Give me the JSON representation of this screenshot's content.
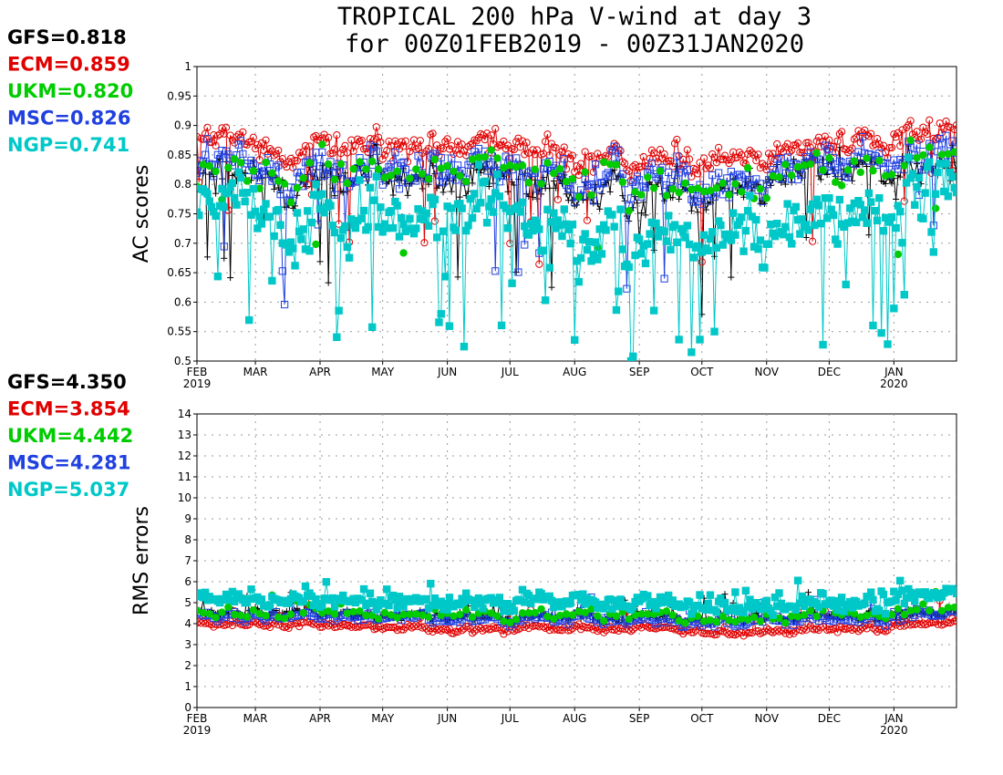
{
  "title": {
    "line1": "TROPICAL 200 hPa V-wind at day 3",
    "line2": "for 00Z01FEB2019 - 00Z31JAN2020"
  },
  "colors": {
    "GFS": "#000000",
    "ECM": "#e00000",
    "UKM": "#00cc00",
    "MSC": "#2040e0",
    "NGP": "#00c8c8"
  },
  "months": [
    "FEB",
    "MAR",
    "APR",
    "MAY",
    "JUN",
    "JUL",
    "AUG",
    "SEP",
    "OCT",
    "NOV",
    "DEC",
    "JAN"
  ],
  "month_years": {
    "FEB": "2019",
    "JAN": "2020"
  },
  "chart_data": [
    {
      "type": "line",
      "ylabel": "AC scores",
      "ylim": [
        0.5,
        1
      ],
      "yticks": [
        "0.5",
        "0.55",
        "0.6",
        "0.65",
        "0.7",
        "0.75",
        "0.8",
        "0.85",
        "0.9",
        "0.95",
        "1"
      ],
      "grid": true,
      "x": "daily, 00Z01FEB2019 to 00Z31JAN2020",
      "stats": [
        {
          "name": "GFS",
          "text": "GFS=0.818"
        },
        {
          "name": "ECM",
          "text": "ECM=0.859"
        },
        {
          "name": "UKM",
          "text": "UKM=0.820"
        },
        {
          "name": "MSC",
          "text": "MSC=0.826"
        },
        {
          "name": "NGP",
          "text": "NGP=0.741"
        }
      ],
      "series": [
        {
          "name": "GFS",
          "marker": "plus",
          "mean": 0.818,
          "monthly": [
            0.81,
            0.8,
            0.82,
            0.81,
            0.8,
            0.8,
            0.78,
            0.79,
            0.8,
            0.82,
            0.83,
            0.83
          ]
        },
        {
          "name": "ECM",
          "marker": "open-circle",
          "mean": 0.859,
          "monthly": [
            0.88,
            0.85,
            0.87,
            0.86,
            0.86,
            0.86,
            0.84,
            0.84,
            0.85,
            0.86,
            0.87,
            0.89
          ]
        },
        {
          "name": "UKM",
          "marker": "filled-circle",
          "mean": 0.82,
          "monthly": [
            0.83,
            0.81,
            0.83,
            0.82,
            0.82,
            0.82,
            0.8,
            0.8,
            0.81,
            0.82,
            0.83,
            0.85
          ]
        },
        {
          "name": "MSC",
          "marker": "open-square",
          "mean": 0.826,
          "monthly": [
            0.84,
            0.81,
            0.83,
            0.82,
            0.82,
            0.82,
            0.8,
            0.81,
            0.81,
            0.83,
            0.84,
            0.85
          ]
        },
        {
          "name": "NGP",
          "marker": "filled-square",
          "mean": 0.741,
          "monthly": [
            0.77,
            0.73,
            0.76,
            0.74,
            0.74,
            0.74,
            0.7,
            0.71,
            0.73,
            0.74,
            0.74,
            0.79
          ]
        }
      ]
    },
    {
      "type": "line",
      "ylabel": "RMS errors",
      "ylim": [
        0,
        14
      ],
      "yticks": [
        "0",
        "1",
        "2",
        "3",
        "4",
        "5",
        "6",
        "7",
        "8",
        "9",
        "10",
        "11",
        "12",
        "13",
        "14"
      ],
      "grid": true,
      "x": "daily, 00Z01FEB2019 to 00Z31JAN2020",
      "stats": [
        {
          "name": "GFS",
          "text": "GFS=4.350"
        },
        {
          "name": "ECM",
          "text": "ECM=3.854"
        },
        {
          "name": "UKM",
          "text": "UKM=4.442"
        },
        {
          "name": "MSC",
          "text": "MSC=4.281"
        },
        {
          "name": "NGP",
          "text": "NGP=5.037"
        }
      ],
      "series": [
        {
          "name": "GFS",
          "marker": "plus",
          "mean": 4.35,
          "monthly": [
            4.5,
            4.6,
            4.4,
            4.4,
            4.3,
            4.3,
            4.3,
            4.4,
            4.2,
            4.3,
            4.3,
            4.4
          ]
        },
        {
          "name": "ECM",
          "marker": "open-circle",
          "mean": 3.854,
          "monthly": [
            4.0,
            4.0,
            3.9,
            3.8,
            3.7,
            3.8,
            3.8,
            3.9,
            3.6,
            3.7,
            3.7,
            4.0
          ]
        },
        {
          "name": "UKM",
          "marker": "filled-circle",
          "mean": 4.442,
          "monthly": [
            4.6,
            4.5,
            4.5,
            4.4,
            4.4,
            4.4,
            4.5,
            4.5,
            4.2,
            4.4,
            4.4,
            4.6
          ]
        },
        {
          "name": "MSC",
          "marker": "open-square",
          "mean": 4.281,
          "monthly": [
            4.4,
            4.4,
            4.3,
            4.3,
            4.2,
            4.2,
            4.3,
            4.3,
            4.1,
            4.2,
            4.2,
            4.4
          ]
        },
        {
          "name": "NGP",
          "marker": "filled-square",
          "mean": 5.037,
          "monthly": [
            5.3,
            5.1,
            5.0,
            5.0,
            5.0,
            5.1,
            5.1,
            5.2,
            4.8,
            4.9,
            4.9,
            5.3
          ]
        }
      ]
    }
  ]
}
